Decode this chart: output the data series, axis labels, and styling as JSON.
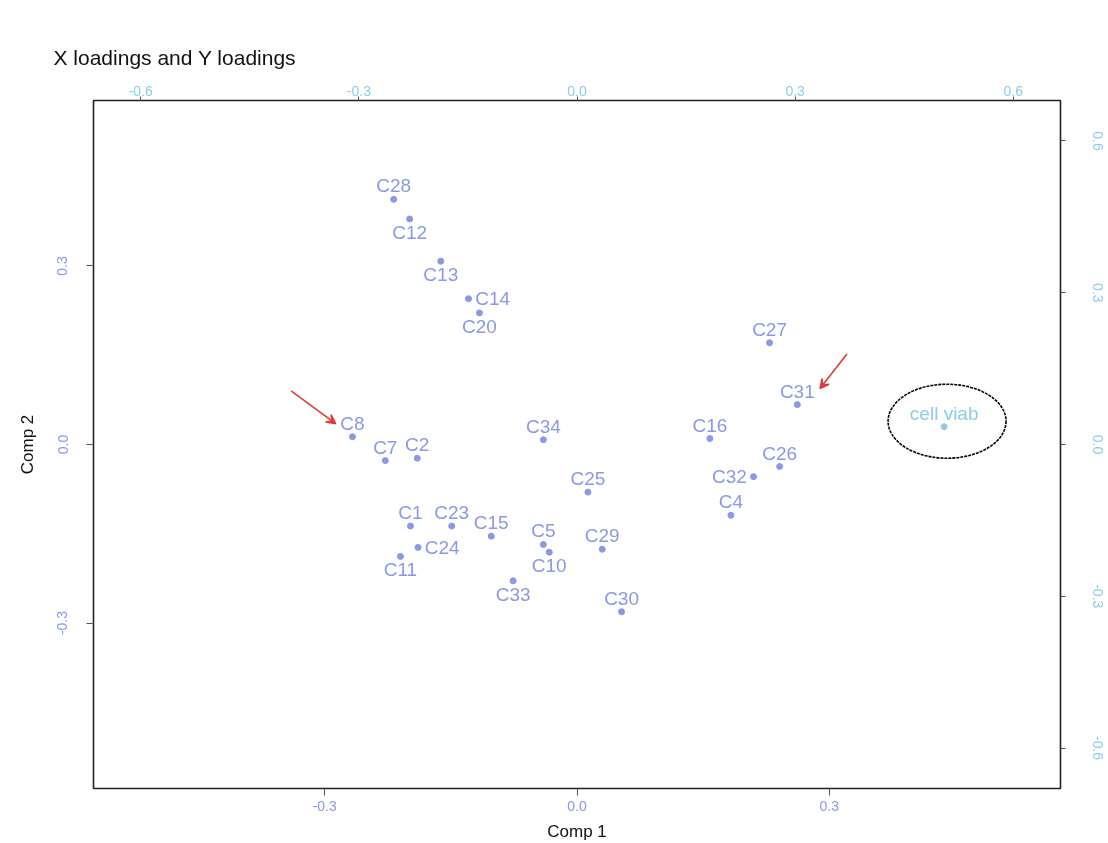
{
  "chart_data": {
    "type": "scatter",
    "title": "X loadings and Y loadings",
    "xlabel": "Comp 1",
    "ylabel": "Comp 2",
    "xlim": [
      -0.575,
      0.575
    ],
    "ylim": [
      -0.578,
      0.578
    ],
    "xticks": [
      -0.3,
      {
        "value": 0,
        "label": "0.0"
      },
      0.3
    ],
    "yticks": [
      -0.3,
      {
        "value": 0,
        "label": "0.0"
      },
      0.3
    ],
    "x2lim": [
      -0.665,
      0.665
    ],
    "x2ticks": [
      -0.6,
      -0.3,
      {
        "value": 0,
        "label": "0.0"
      },
      0.3,
      0.6
    ],
    "y2lim": [
      -0.68,
      0.68
    ],
    "y2ticks": [
      -0.6,
      -0.3,
      {
        "value": 0,
        "label": "0.0"
      },
      0.3,
      0.6
    ],
    "marker": "circle",
    "series": [
      {
        "color": "#8a99e6",
        "x": [
          -0.198,
          -0.19,
          0.183,
          -0.04,
          -0.228,
          -0.267,
          -0.033,
          -0.21,
          -0.199,
          -0.162,
          -0.129,
          -0.102,
          0.158,
          -0.116,
          -0.149,
          -0.189,
          0.013,
          0.241,
          0.229,
          -0.218,
          0.03,
          0.053,
          0.262,
          0.21,
          -0.076,
          -0.04
        ],
        "values": [
          -0.137,
          -0.023,
          -0.119,
          -0.168,
          -0.027,
          0.013,
          -0.181,
          -0.188,
          0.379,
          0.308,
          0.245,
          -0.154,
          0.01,
          0.221,
          -0.137,
          -0.173,
          -0.08,
          -0.037,
          0.171,
          0.412,
          -0.176,
          -0.281,
          0.067,
          -0.054,
          -0.229,
          0.008
        ],
        "value_labels": [
          "C1",
          "C2",
          "C4",
          "C5",
          "C7",
          "C8",
          "C10",
          "C11",
          "C12",
          "C13",
          "C14",
          "C15",
          "C16",
          "C20",
          "C23",
          "C24",
          "C25",
          "C26",
          "C27",
          "C28",
          "C29",
          "C30",
          "C31",
          "C32",
          "C33",
          "C34"
        ]
      },
      {
        "color": "#8ccdea",
        "axis": "x2",
        "x": [
          0.505
        ],
        "values": [
          0.03
        ],
        "value_labels": [
          "cell viab"
        ]
      }
    ]
  }
}
